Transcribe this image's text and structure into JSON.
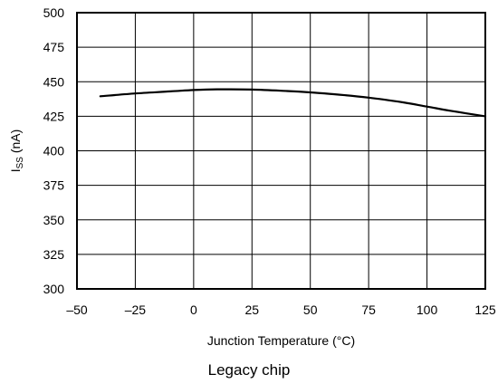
{
  "chart_data": {
    "type": "line",
    "xlabel": "Junction Temperature (°C)",
    "ylabel": {
      "base": "I",
      "subscript": "SS",
      "unit": " (nA)"
    },
    "xlim": [
      -50,
      125
    ],
    "ylim": [
      300,
      500
    ],
    "x_ticks": [
      -50,
      -25,
      0,
      25,
      50,
      75,
      100,
      125
    ],
    "x_tick_labels": [
      "–50",
      "–25",
      "0",
      "25",
      "50",
      "75",
      "100",
      "125"
    ],
    "y_ticks": [
      300,
      325,
      350,
      375,
      400,
      425,
      450,
      475,
      500
    ],
    "y_tick_labels": [
      "300",
      "325",
      "350",
      "375",
      "400",
      "425",
      "450",
      "475",
      "500"
    ],
    "grid": true,
    "series": [
      {
        "color": "#000000",
        "x": [
          -40,
          -25,
          -10,
          0,
          10,
          25,
          40,
          50,
          60,
          75,
          90,
          100,
          110,
          125
        ],
        "y": [
          439.5,
          441.5,
          443,
          444,
          444.5,
          444.3,
          443.3,
          442.3,
          441,
          438.5,
          435,
          432,
          429,
          425
        ]
      }
    ]
  },
  "caption": "Legacy chip"
}
